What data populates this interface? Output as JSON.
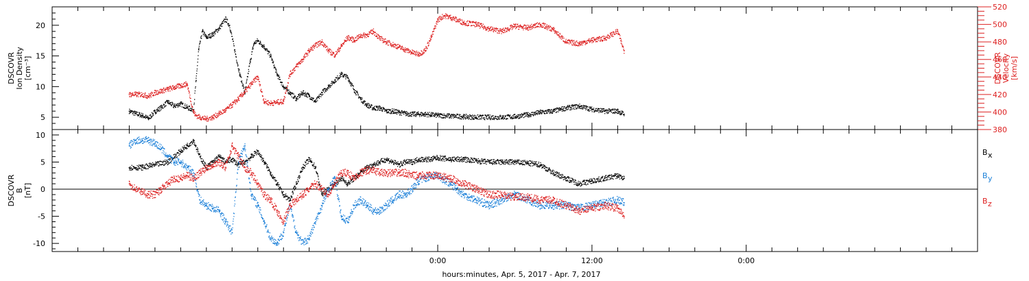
{
  "chart_data": [
    {
      "type": "scatter",
      "panel": "top",
      "ylabel_left": [
        "DSCOVR",
        "Ion Density",
        "[cm⁻³]"
      ],
      "ylabel_right": [
        "DSCOVR",
        "Velocity",
        "[km/s]"
      ],
      "y_left_lim": [
        3,
        23
      ],
      "y_left_ticks": [
        5,
        10,
        15,
        20
      ],
      "y_right_lim": [
        380,
        520
      ],
      "y_right_ticks": [
        380,
        400,
        420,
        440,
        460,
        480,
        500,
        520
      ],
      "colors": {
        "density": "#000000",
        "velocity": "#dd2020"
      },
      "series": [
        {
          "key": "density",
          "axis": "left",
          "x": [
            -24,
            -23.5,
            -23,
            -22.5,
            -22,
            -21.5,
            -21,
            -20.5,
            -20,
            -19.5,
            -19,
            -18.8,
            -18.6,
            -18.3,
            -18,
            -17.5,
            -17,
            -16.5,
            -16.2,
            -15.8,
            -15.4,
            -15,
            -14.6,
            -14.3,
            -14,
            -13.5,
            -13,
            -12.5,
            -12,
            -11.5,
            -11,
            -10.5,
            -10,
            -9.5,
            -9,
            -8.5,
            -8,
            -7.5,
            -7,
            -6.5,
            -6,
            -5.5,
            -5,
            -4.5,
            -4,
            -3.5,
            -3,
            -2.5,
            -2,
            -1.5,
            -1,
            -0.5,
            0,
            1,
            2,
            3,
            4,
            5,
            6,
            7,
            8,
            9,
            10,
            11,
            12,
            13,
            14,
            14.5
          ],
          "y": [
            6,
            5.6,
            5.3,
            4.8,
            5.9,
            6.6,
            7.5,
            6.8,
            7.2,
            6.6,
            6.2,
            11,
            16,
            19,
            18,
            18.5,
            19.5,
            21,
            20,
            16,
            12,
            9,
            14,
            17,
            17.5,
            16.5,
            15,
            12,
            10,
            9,
            8,
            9,
            8.5,
            7.5,
            9,
            10,
            11,
            12,
            11.5,
            9.5,
            8,
            7,
            6.5,
            6.5,
            6,
            6,
            5.8,
            5.6,
            5.5,
            5.5,
            5.5,
            5.4,
            5.3,
            5.2,
            5.1,
            5,
            5,
            5,
            5.1,
            5.4,
            5.8,
            6,
            6.5,
            6.8,
            6.3,
            6,
            6,
            5.5
          ]
        },
        {
          "key": "velocity",
          "axis": "right",
          "x": [
            -24,
            -23.5,
            -23,
            -22.5,
            -22,
            -21.5,
            -21,
            -20.5,
            -20,
            -19.5,
            -19,
            -18.8,
            -18.5,
            -18,
            -17.5,
            -17,
            -16.5,
            -16,
            -15.5,
            -15,
            -14.5,
            -14,
            -13.5,
            -13,
            -12.5,
            -12,
            -11.5,
            -11,
            -10.5,
            -10,
            -9.5,
            -9,
            -8.5,
            -8,
            -7.5,
            -7,
            -6.5,
            -6,
            -5.5,
            -5,
            -4.5,
            -4,
            -3.5,
            -3,
            -2.5,
            -2,
            -1.5,
            -1,
            -0.5,
            0,
            0.5,
            1,
            2,
            3,
            4,
            5,
            6,
            7,
            8,
            9,
            10,
            11,
            12,
            13,
            14,
            14.5
          ],
          "y": [
            420,
            420,
            420,
            418,
            422,
            424,
            426,
            428,
            430,
            432,
            400,
            396,
            394,
            392,
            394,
            398,
            402,
            408,
            415,
            423,
            432,
            440,
            412,
            410,
            411,
            412,
            443,
            452,
            460,
            470,
            476,
            480,
            470,
            465,
            475,
            485,
            482,
            487,
            488,
            492,
            484,
            480,
            477,
            474,
            471,
            468,
            466,
            470,
            485,
            505,
            510,
            508,
            502,
            500,
            495,
            492,
            498,
            496,
            500,
            494,
            480,
            478,
            482,
            484,
            492,
            470
          ]
        }
      ]
    },
    {
      "type": "scatter",
      "panel": "bottom",
      "ylabel_left": [
        "DSCOVR",
        "B",
        "[nT]"
      ],
      "y_left_lim": [
        -11.5,
        11
      ],
      "y_left_ticks": [
        -10,
        -5,
        0,
        5,
        10
      ],
      "zero_line": true,
      "legend": [
        "Bₓ",
        "Bᵧ",
        "B_z"
      ],
      "legend_text": {
        "bx": "B",
        "by": "B",
        "bz": "B",
        "bx_sub": "x",
        "by_sub": "y",
        "bz_sub": "z"
      },
      "colors": {
        "bx": "#000000",
        "by": "#1a7fd8",
        "bz": "#dd2020"
      },
      "series": [
        {
          "key": "bx",
          "x": [
            -24,
            -23,
            -22,
            -21,
            -20,
            -19.5,
            -19,
            -18.5,
            -18,
            -17.5,
            -17,
            -16.5,
            -16,
            -15.5,
            -15,
            -14.5,
            -14,
            -13.5,
            -13,
            -12.5,
            -12,
            -11.5,
            -11,
            -10.5,
            -10,
            -9.5,
            -9,
            -8.5,
            -8,
            -7.5,
            -7,
            -6.5,
            -6,
            -5.5,
            -5,
            -4.5,
            -4,
            -3.5,
            -3,
            -2.5,
            -2,
            -1.5,
            -1,
            -0.5,
            0,
            1,
            2,
            3,
            4,
            5,
            6,
            7,
            8,
            9,
            10,
            11,
            12,
            13,
            14,
            14.5
          ],
          "y": [
            4,
            4,
            4.5,
            5,
            7,
            8,
            9,
            6,
            4,
            5,
            6,
            5,
            5.5,
            4.5,
            5,
            6,
            7,
            5,
            3,
            1,
            -1,
            -2,
            1,
            4,
            5.5,
            4,
            -1,
            0,
            1,
            2,
            1,
            2,
            3,
            4,
            4.5,
            5,
            5.5,
            5,
            4.5,
            5,
            5,
            5.5,
            5.5,
            5.5,
            5.8,
            5.5,
            5.5,
            5.2,
            5,
            5,
            5,
            4.8,
            4.5,
            3,
            2,
            1,
            1.5,
            2,
            2.5,
            2
          ]
        },
        {
          "key": "by",
          "x": [
            -24,
            -23.5,
            -23,
            -22.5,
            -22,
            -21.5,
            -21,
            -20.5,
            -20,
            -19.5,
            -19,
            -18.5,
            -18,
            -17.5,
            -17,
            -16.5,
            -16,
            -15.5,
            -15,
            -14.5,
            -14,
            -13.5,
            -13,
            -12.5,
            -12,
            -11.5,
            -11,
            -10.5,
            -10,
            -9.5,
            -9,
            -8.5,
            -8,
            -7.5,
            -7,
            -6.5,
            -6,
            -5.5,
            -5,
            -4.5,
            -4,
            -3.5,
            -3,
            -2.5,
            -2,
            -1.5,
            -1,
            -0.5,
            0,
            1,
            2,
            3,
            4,
            5,
            6,
            7,
            8,
            9,
            10,
            11,
            12,
            13,
            14,
            14.5
          ],
          "y": [
            8,
            9,
            9,
            9,
            8.5,
            7.5,
            6,
            5,
            5,
            4,
            3,
            -2,
            -3,
            -3.5,
            -4,
            -6,
            -8,
            5,
            8,
            -1,
            -3,
            -6,
            -9,
            -10,
            -8,
            -3,
            -8,
            -10,
            -9,
            -6,
            -3,
            0,
            2,
            -5,
            -6,
            -3,
            -2,
            -3,
            -4,
            -4,
            -3,
            -2,
            -1,
            -1,
            0,
            1.5,
            2,
            2.5,
            2.5,
            1,
            -1,
            -2,
            -3,
            -2,
            -1,
            -2,
            -3,
            -3,
            -3,
            -3.5,
            -3,
            -2.5,
            -2,
            -2.5
          ]
        },
        {
          "key": "bz",
          "x": [
            -24,
            -23.5,
            -23,
            -22.5,
            -22,
            -21.5,
            -21,
            -20.5,
            -20,
            -19.5,
            -19,
            -18.5,
            -18,
            -17.5,
            -17,
            -16.5,
            -16,
            -15.5,
            -15,
            -14.5,
            -14,
            -13.5,
            -13,
            -12.5,
            -12,
            -11.5,
            -11,
            -10.5,
            -10,
            -9.5,
            -9,
            -8.5,
            -8,
            -7.5,
            -7,
            -6.5,
            -6,
            -5.5,
            -5,
            -4.5,
            -4,
            -3.5,
            -3,
            -2.5,
            -2,
            -1.5,
            -1,
            -0.5,
            0,
            1,
            2,
            3,
            4,
            5,
            6,
            7,
            8,
            9,
            10,
            11,
            12,
            13,
            14,
            14.5
          ],
          "y": [
            1,
            0,
            -0.5,
            -1,
            -1,
            0,
            1,
            2,
            2,
            2.5,
            2,
            3,
            4,
            4.5,
            5,
            4,
            8,
            6,
            4,
            3,
            1,
            -1,
            -2,
            -4,
            -6,
            -3,
            -2,
            -1,
            0,
            1,
            0,
            -1,
            1,
            3,
            3,
            2,
            3,
            3.5,
            3.5,
            3,
            3,
            3,
            3,
            3,
            2.5,
            2.5,
            2.5,
            2.5,
            2.5,
            2,
            1,
            0,
            -1,
            -1,
            -1.5,
            -1.5,
            -2,
            -2,
            -3,
            -4,
            -3.5,
            -3,
            -3.5,
            -5
          ]
        }
      ]
    }
  ],
  "x_axis": {
    "title": "hours:minutes, Apr.  5, 2017 - Apr.  7, 2017",
    "range_hours": [
      -30,
      42
    ],
    "major_ticks": [
      {
        "hour": 0,
        "label": "0:00"
      },
      {
        "hour": 12,
        "label": "12:00"
      },
      {
        "hour": 24,
        "label": "0:00"
      }
    ],
    "minor_step_hours": 2
  }
}
